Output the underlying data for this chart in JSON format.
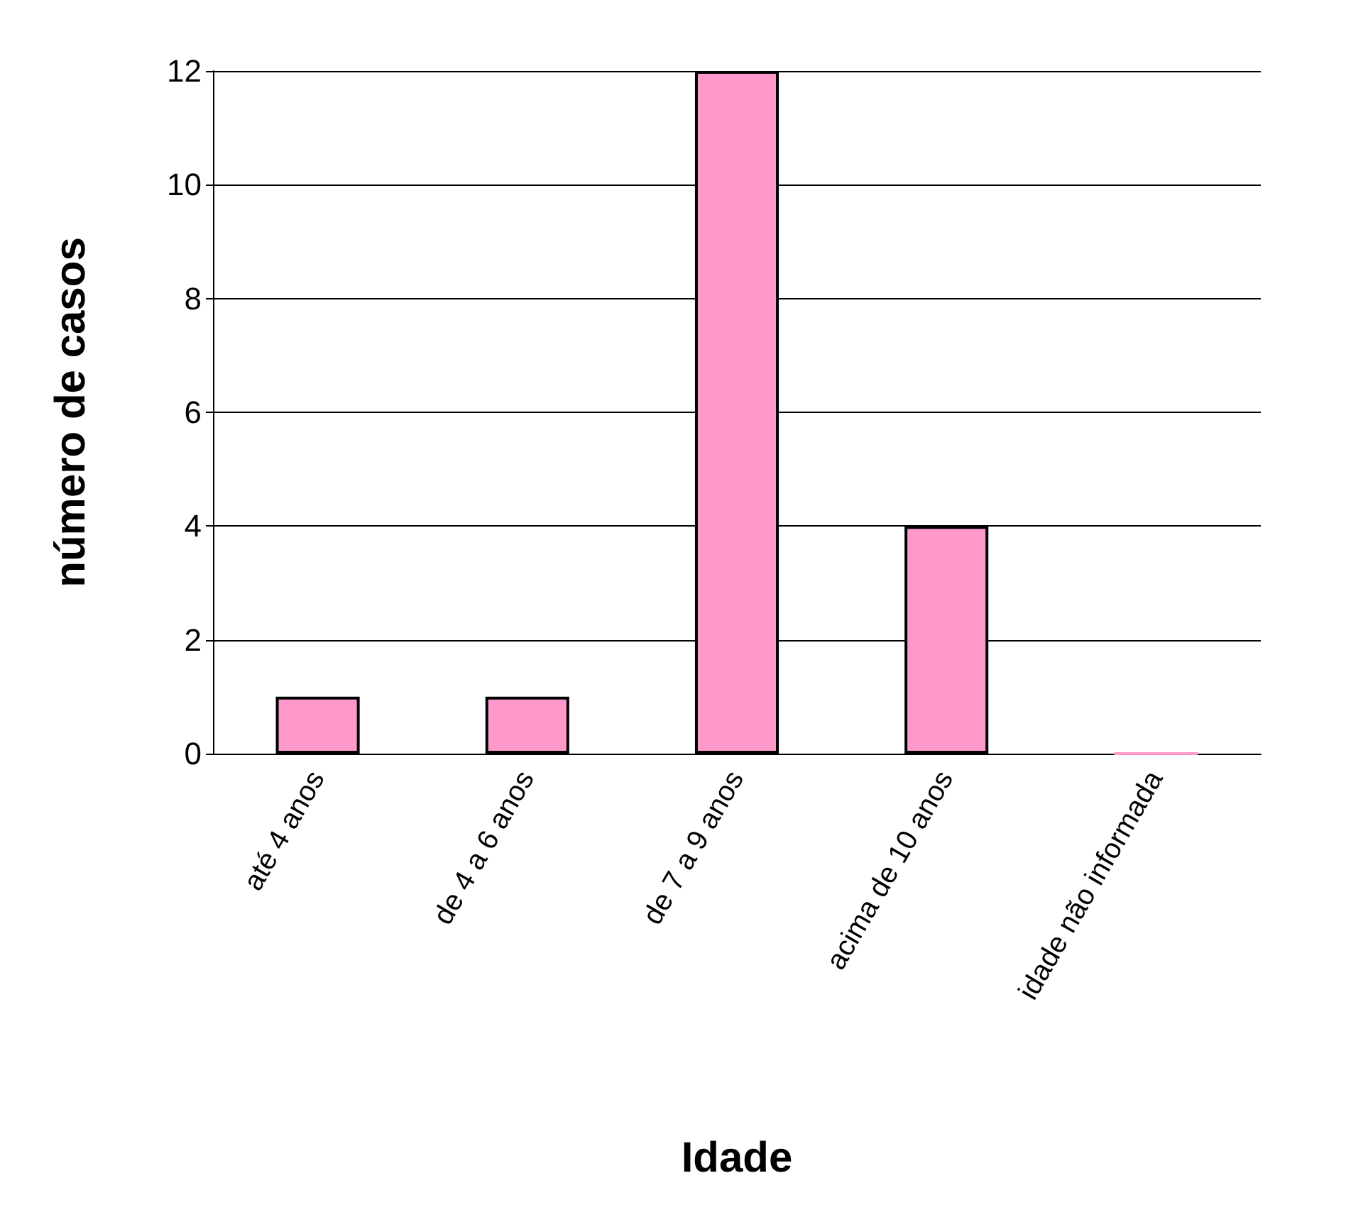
{
  "chart_data": {
    "type": "bar",
    "xlabel": "Idade",
    "ylabel": "número de casos",
    "categories": [
      "até 4 anos",
      "de 4 a 6 anos",
      "de 7 a 9 anos",
      "acima de 10 anos",
      "idade não informada"
    ],
    "values": [
      1,
      1,
      12,
      4,
      0
    ],
    "color": "#ff99cc",
    "ylim": [
      0,
      12
    ],
    "yticks": [
      0,
      2,
      4,
      6,
      8,
      10,
      12
    ],
    "grid": "y"
  }
}
